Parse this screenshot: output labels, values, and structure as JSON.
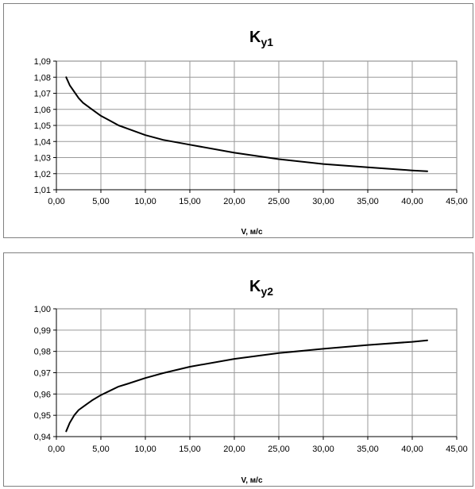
{
  "chart_data": [
    {
      "type": "line",
      "title_main": "K",
      "title_sub": "y1",
      "xlabel": "V, м/с",
      "ylabel": "",
      "xlim": [
        0,
        45
      ],
      "ylim": [
        1.01,
        1.09
      ],
      "grid": true,
      "x_ticks": [
        "0,00",
        "5,00",
        "10,00",
        "15,00",
        "20,00",
        "25,00",
        "30,00",
        "35,00",
        "40,00",
        "45,00"
      ],
      "y_ticks": [
        "1,01",
        "1,02",
        "1,03",
        "1,04",
        "1,05",
        "1,06",
        "1,07",
        "1,08",
        "1,09"
      ],
      "series": [
        {
          "color": "#000000",
          "x": [
            1.1,
            1.5,
            2,
            2.5,
            3,
            4,
            5,
            6,
            7,
            8,
            10,
            12,
            15,
            20,
            25,
            30,
            35,
            40,
            41.7
          ],
          "y": [
            1.08,
            1.075,
            1.071,
            1.067,
            1.064,
            1.06,
            1.056,
            1.053,
            1.05,
            1.048,
            1.044,
            1.041,
            1.038,
            1.033,
            1.029,
            1.026,
            1.024,
            1.022,
            1.0215
          ]
        }
      ]
    },
    {
      "type": "line",
      "title_main": "K",
      "title_sub": "y2",
      "xlabel": "V, м/с",
      "ylabel": "",
      "xlim": [
        0,
        45
      ],
      "ylim": [
        0.94,
        1.0
      ],
      "grid": true,
      "x_ticks": [
        "0,00",
        "5,00",
        "10,00",
        "15,00",
        "20,00",
        "25,00",
        "30,00",
        "35,00",
        "40,00",
        "45,00"
      ],
      "y_ticks": [
        "0,94",
        "0,95",
        "0,96",
        "0,97",
        "0,98",
        "0,99",
        "1,00"
      ],
      "series": [
        {
          "color": "#000000",
          "x": [
            1.1,
            1.5,
            2,
            2.5,
            3,
            4,
            5,
            6,
            7,
            8,
            10,
            12,
            15,
            20,
            25,
            30,
            35,
            40,
            41.7
          ],
          "y": [
            0.9425,
            0.9465,
            0.95,
            0.9525,
            0.954,
            0.957,
            0.9595,
            0.9615,
            0.9635,
            0.9648,
            0.9675,
            0.9698,
            0.9728,
            0.9765,
            0.9792,
            0.9812,
            0.983,
            0.9845,
            0.9852
          ]
        }
      ]
    }
  ]
}
